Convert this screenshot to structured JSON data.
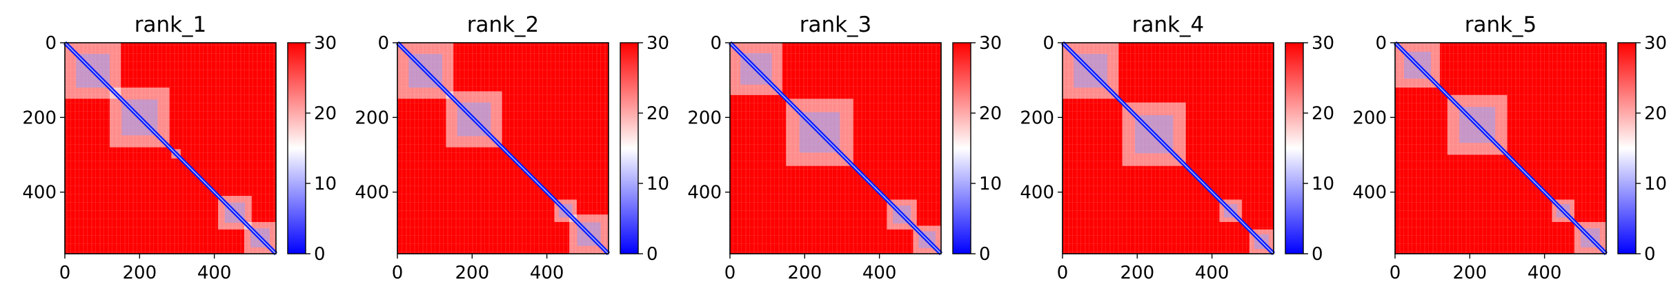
{
  "chart_data": [
    {
      "type": "heatmap",
      "title": "rank_1",
      "x_range": [
        0,
        565
      ],
      "y_range": [
        565,
        0
      ],
      "x_ticks": [
        "0",
        "200",
        "400"
      ],
      "y_ticks": [
        "0",
        "200",
        "400"
      ],
      "colorbar": {
        "range": [
          0,
          30
        ],
        "ticks": [
          "0",
          "10",
          "20",
          "30"
        ],
        "colormap": [
          "#0000ff",
          "#ffffff",
          "#ff0000"
        ]
      },
      "low_distance_blocks": [
        [
          0,
          150
        ],
        [
          120,
          280
        ],
        [
          285,
          310
        ],
        [
          410,
          500
        ],
        [
          480,
          565
        ]
      ]
    },
    {
      "type": "heatmap",
      "title": "rank_2",
      "x_range": [
        0,
        565
      ],
      "y_range": [
        565,
        0
      ],
      "x_ticks": [
        "0",
        "200",
        "400"
      ],
      "y_ticks": [
        "0",
        "200",
        "400"
      ],
      "colorbar": {
        "range": [
          0,
          30
        ],
        "ticks": [
          "0",
          "10",
          "20",
          "30"
        ],
        "colormap": [
          "#0000ff",
          "#ffffff",
          "#ff0000"
        ]
      },
      "low_distance_blocks": [
        [
          0,
          150
        ],
        [
          130,
          280
        ],
        [
          420,
          480
        ],
        [
          460,
          565
        ]
      ]
    },
    {
      "type": "heatmap",
      "title": "rank_3",
      "x_range": [
        0,
        565
      ],
      "y_range": [
        565,
        0
      ],
      "x_ticks": [
        "0",
        "200",
        "400"
      ],
      "y_ticks": [
        "0",
        "200",
        "400"
      ],
      "colorbar": {
        "range": [
          0,
          30
        ],
        "ticks": [
          "0",
          "10",
          "20",
          "30"
        ],
        "colormap": [
          "#0000ff",
          "#ffffff",
          "#ff0000"
        ]
      },
      "low_distance_blocks": [
        [
          0,
          140
        ],
        [
          150,
          330
        ],
        [
          420,
          500
        ],
        [
          490,
          565
        ]
      ]
    },
    {
      "type": "heatmap",
      "title": "rank_4",
      "x_range": [
        0,
        565
      ],
      "y_range": [
        565,
        0
      ],
      "x_ticks": [
        "0",
        "200",
        "400"
      ],
      "y_ticks": [
        "0",
        "200",
        "400"
      ],
      "colorbar": {
        "range": [
          0,
          30
        ],
        "ticks": [
          "0",
          "10",
          "20",
          "30"
        ],
        "colormap": [
          "#0000ff",
          "#ffffff",
          "#ff0000"
        ]
      },
      "low_distance_blocks": [
        [
          0,
          150
        ],
        [
          160,
          330
        ],
        [
          420,
          480
        ],
        [
          500,
          565
        ]
      ]
    },
    {
      "type": "heatmap",
      "title": "rank_5",
      "x_range": [
        0,
        565
      ],
      "y_range": [
        565,
        0
      ],
      "x_ticks": [
        "0",
        "200",
        "400"
      ],
      "y_ticks": [
        "0",
        "200",
        "400"
      ],
      "colorbar": {
        "range": [
          0,
          30
        ],
        "ticks": [
          "0",
          "10",
          "20",
          "30"
        ],
        "colormap": [
          "#0000ff",
          "#ffffff",
          "#ff0000"
        ]
      },
      "low_distance_blocks": [
        [
          0,
          120
        ],
        [
          140,
          300
        ],
        [
          420,
          480
        ],
        [
          480,
          565
        ]
      ]
    }
  ]
}
